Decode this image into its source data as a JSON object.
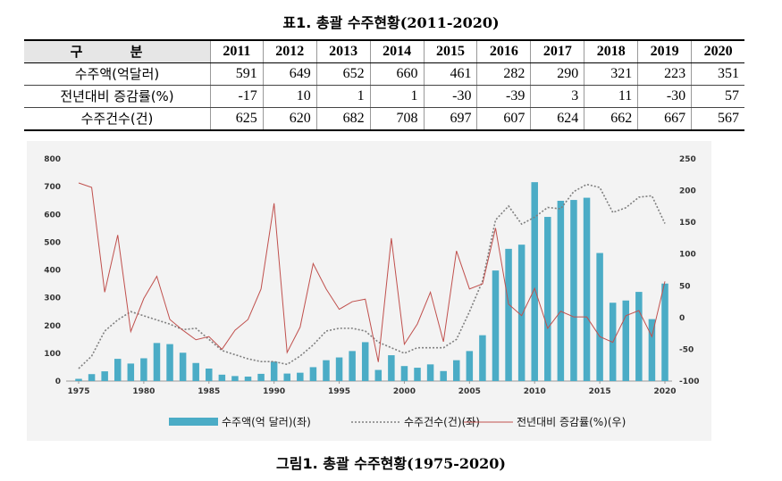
{
  "table": {
    "title_prefix": "표1. 총괄 수주현황",
    "title_years": "(2011-2020)",
    "header_label": "구 분",
    "years": [
      "2011",
      "2012",
      "2013",
      "2014",
      "2015",
      "2016",
      "2017",
      "2018",
      "2019",
      "2020"
    ],
    "rows": [
      {
        "label": "수주액(억달러)",
        "values": [
          "591",
          "649",
          "652",
          "660",
          "461",
          "282",
          "290",
          "321",
          "223",
          "351"
        ]
      },
      {
        "label": "전년대비 증감률(%)",
        "values": [
          "-17",
          "10",
          "1",
          "1",
          "-30",
          "-39",
          "3",
          "11",
          "-30",
          "57"
        ]
      },
      {
        "label": "수주건수(건)",
        "values": [
          "625",
          "620",
          "682",
          "708",
          "697",
          "607",
          "624",
          "662",
          "667",
          "567"
        ]
      }
    ]
  },
  "figure": {
    "title_prefix": "그림1. 총괄 수주현황",
    "title_years": "(1975-2020)"
  },
  "chart_data": {
    "type": "bar",
    "x": [
      1975,
      1976,
      1977,
      1978,
      1979,
      1980,
      1981,
      1982,
      1983,
      1984,
      1985,
      1986,
      1987,
      1988,
      1989,
      1990,
      1991,
      1992,
      1993,
      1994,
      1995,
      1996,
      1997,
      1998,
      1999,
      2000,
      2001,
      2002,
      2003,
      2004,
      2005,
      2006,
      2007,
      2008,
      2009,
      2010,
      2011,
      2012,
      2013,
      2014,
      2015,
      2016,
      2017,
      2018,
      2019,
      2020
    ],
    "x_ticks": [
      1975,
      1980,
      1985,
      1990,
      1995,
      2000,
      2005,
      2010,
      2015,
      2020
    ],
    "y_left_ticks": [
      0,
      100,
      200,
      300,
      400,
      500,
      600,
      700,
      800
    ],
    "y_right_ticks": [
      -100,
      -50,
      0,
      50,
      100,
      150,
      200,
      250
    ],
    "ylim_left": [
      0,
      800
    ],
    "ylim_right": [
      -100,
      250
    ],
    "series": [
      {
        "name": "수주액(억 달러)(좌)",
        "kind": "bar",
        "axis": "left",
        "color": "#4bacc6",
        "values": [
          8,
          25,
          35,
          80,
          63,
          82,
          137,
          133,
          102,
          65,
          45,
          23,
          18,
          16,
          26,
          70,
          27,
          30,
          50,
          75,
          85,
          108,
          140,
          40,
          93,
          54,
          48,
          60,
          36,
          75,
          108,
          165,
          398,
          476,
          491,
          716,
          591,
          649,
          652,
          660,
          461,
          282,
          290,
          321,
          223,
          351
        ]
      },
      {
        "name": "수주건수(건)(좌)",
        "kind": "line",
        "axis": "left",
        "color": "#7f7f7f",
        "dash": true,
        "values": [
          45,
          90,
          180,
          220,
          250,
          235,
          220,
          205,
          185,
          190,
          150,
          110,
          95,
          80,
          70,
          70,
          60,
          90,
          130,
          180,
          190,
          190,
          180,
          140,
          120,
          100,
          120,
          120,
          120,
          150,
          250,
          360,
          580,
          630,
          565,
          590,
          625,
          620,
          682,
          708,
          697,
          607,
          624,
          662,
          667,
          567
        ]
      },
      {
        "name": "전년대비 증감률(%)(우)",
        "kind": "line",
        "axis": "right",
        "color": "#c0504d",
        "values": [
          212,
          205,
          40,
          130,
          -22,
          30,
          65,
          -3,
          -20,
          -35,
          -30,
          -50,
          -20,
          -3,
          45,
          180,
          -55,
          -15,
          85,
          45,
          13,
          25,
          29,
          -70,
          125,
          -42,
          -10,
          40,
          -38,
          105,
          45,
          53,
          141,
          21,
          3,
          46,
          -17,
          10,
          1,
          1,
          -30,
          -39,
          3,
          11,
          -30,
          57
        ]
      }
    ]
  }
}
